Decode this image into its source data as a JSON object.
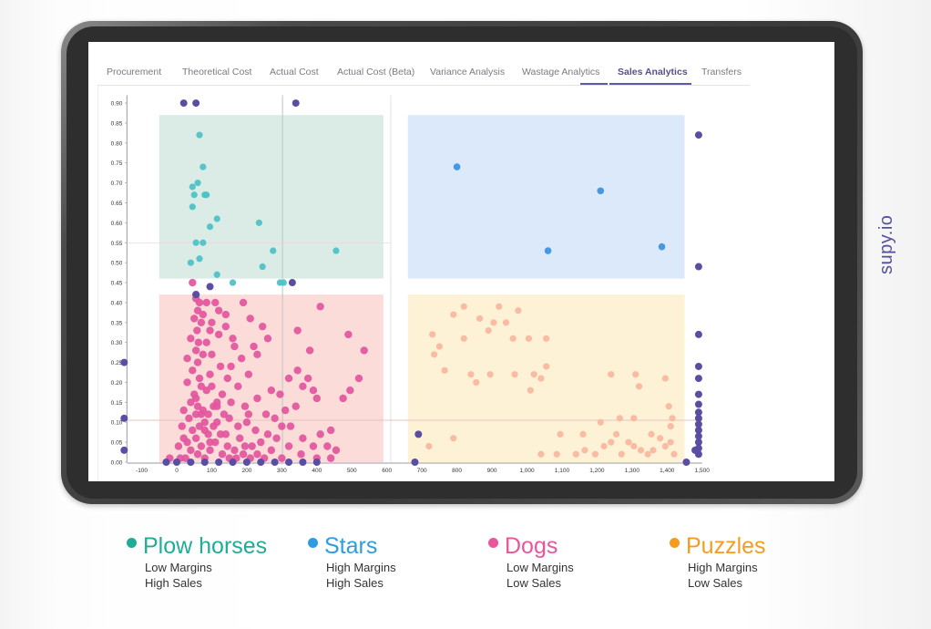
{
  "brand": "supy.io",
  "tabs": [
    {
      "label": "Procurement",
      "active": false
    },
    {
      "label": "Theoretical Cost",
      "active": false
    },
    {
      "label": "Actual Cost",
      "active": false
    },
    {
      "label": "Actual Cost (Beta)",
      "active": false
    },
    {
      "label": "Variance Analysis",
      "active": false
    },
    {
      "label": "Wastage Analytics",
      "active": false
    },
    {
      "label": "Sales Analytics",
      "active": true
    },
    {
      "label": "Transfers",
      "active": false
    }
  ],
  "legend": [
    {
      "title": "Plow horses",
      "line1": "Low Margins",
      "line2": "High Sales",
      "color": "#1fad96"
    },
    {
      "title": "Stars",
      "line1": "High Margins",
      "line2": "High Sales",
      "color": "#2f9be3"
    },
    {
      "title": "Dogs",
      "line1": "Low Margins",
      "line2": "Low Sales",
      "color": "#e8569c"
    },
    {
      "title": "Puzzles",
      "line1": "High Margins",
      "line2": "Low Sales",
      "color": "#f59b22"
    }
  ],
  "colors": {
    "plow_fill": "#dbece6",
    "stars_fill": "#dbe9fa",
    "dogs_fill": "#fbdcd8",
    "puzzles_fill": "#fdf2d6",
    "plow_point": "#4fc2c6",
    "stars_point": "#3d93df",
    "dogs_point": "#e2559e",
    "puzzles_point": "#f9b8a0",
    "edge_point": "#5a4ea3"
  },
  "chart_data": {
    "type": "scatter",
    "x_ticks": [
      "-100",
      "0",
      "100",
      "200",
      "300",
      "400",
      "500",
      "600",
      "700",
      "800",
      "900",
      "1,000",
      "1,100",
      "1,200",
      "1,300",
      "1,400",
      "1,500"
    ],
    "y_ticks": [
      "0.00",
      "0.05",
      "0.10",
      "0.15",
      "0.20",
      "0.25",
      "0.30",
      "0.35",
      "0.40",
      "0.45",
      "0.50",
      "0.55",
      "0.60",
      "0.65",
      "0.70",
      "0.75",
      "0.80",
      "0.85",
      "0.90"
    ],
    "xlim": [
      -150,
      1500
    ],
    "ylim": [
      0,
      0.92
    ],
    "quadrants": [
      {
        "name": "plow",
        "x": [
          -50,
          590
        ],
        "y": [
          0.46,
          0.87
        ]
      },
      {
        "name": "stars",
        "x": [
          660,
          1450
        ],
        "y": [
          0.46,
          0.87
        ]
      },
      {
        "name": "dogs",
        "x": [
          -50,
          590
        ],
        "y": [
          0,
          0.42
        ]
      },
      {
        "name": "puzzles",
        "x": [
          660,
          1450
        ],
        "y": [
          0,
          0.42
        ]
      }
    ],
    "reference_lines": {
      "x": 302,
      "y": 0.105,
      "x2": 611
    },
    "series": [
      {
        "points": [
          [
            65,
            0.82
          ],
          [
            75,
            0.74
          ],
          [
            60,
            0.7
          ],
          [
            45,
            0.69
          ],
          [
            50,
            0.67
          ],
          [
            85,
            0.67
          ],
          [
            80,
            0.67
          ],
          [
            45,
            0.64
          ],
          [
            95,
            0.59
          ],
          [
            115,
            0.61
          ],
          [
            235,
            0.6
          ],
          [
            55,
            0.55
          ],
          [
            75,
            0.55
          ],
          [
            275,
            0.53
          ],
          [
            455,
            0.53
          ],
          [
            65,
            0.51
          ],
          [
            40,
            0.5
          ],
          [
            245,
            0.49
          ],
          [
            115,
            0.47
          ],
          [
            160,
            0.45
          ],
          [
            295,
            0.45
          ],
          [
            305,
            0.45
          ]
        ]
      },
      {
        "points": [
          [
            800,
            0.74
          ],
          [
            1210,
            0.68
          ],
          [
            1060,
            0.53
          ],
          [
            1385,
            0.54
          ]
        ]
      },
      {
        "points": [
          [
            55,
            0.41
          ],
          [
            60,
            0.38
          ],
          [
            50,
            0.36
          ],
          [
            58,
            0.33
          ],
          [
            62,
            0.3
          ],
          [
            55,
            0.28
          ],
          [
            60,
            0.25
          ],
          [
            45,
            0.23
          ],
          [
            65,
            0.21
          ],
          [
            70,
            0.19
          ],
          [
            50,
            0.17
          ],
          [
            40,
            0.15
          ],
          [
            60,
            0.14
          ],
          [
            75,
            0.13
          ],
          [
            55,
            0.12
          ],
          [
            35,
            0.11
          ],
          [
            80,
            0.1
          ],
          [
            65,
            0.09
          ],
          [
            45,
            0.08
          ],
          [
            90,
            0.07
          ],
          [
            55,
            0.06
          ],
          [
            30,
            0.05
          ],
          [
            110,
            0.05
          ],
          [
            70,
            0.04
          ],
          [
            40,
            0.03
          ],
          [
            95,
            0.03
          ],
          [
            60,
            0.02
          ],
          [
            130,
            0.02
          ],
          [
            25,
            0.01
          ],
          [
            150,
            0.01
          ],
          [
            80,
            0.01
          ],
          [
            110,
            0.4
          ],
          [
            140,
            0.37
          ],
          [
            190,
            0.4
          ],
          [
            210,
            0.36
          ],
          [
            245,
            0.34
          ],
          [
            260,
            0.31
          ],
          [
            230,
            0.27
          ],
          [
            165,
            0.29
          ],
          [
            120,
            0.32
          ],
          [
            100,
            0.27
          ],
          [
            125,
            0.24
          ],
          [
            145,
            0.21
          ],
          [
            100,
            0.19
          ],
          [
            130,
            0.17
          ],
          [
            115,
            0.14
          ],
          [
            90,
            0.12
          ],
          [
            150,
            0.11
          ],
          [
            175,
            0.09
          ],
          [
            200,
            0.1
          ],
          [
            140,
            0.07
          ],
          [
            180,
            0.06
          ],
          [
            215,
            0.04
          ],
          [
            165,
            0.03
          ],
          [
            230,
            0.02
          ],
          [
            260,
            0.07
          ],
          [
            280,
            0.11
          ],
          [
            310,
            0.13
          ],
          [
            295,
            0.17
          ],
          [
            270,
            0.18
          ],
          [
            320,
            0.21
          ],
          [
            345,
            0.23
          ],
          [
            375,
            0.21
          ],
          [
            390,
            0.18
          ],
          [
            360,
            0.19
          ],
          [
            400,
            0.16
          ],
          [
            340,
            0.14
          ],
          [
            325,
            0.09
          ],
          [
            360,
            0.06
          ],
          [
            390,
            0.04
          ],
          [
            410,
            0.07
          ],
          [
            440,
            0.08
          ],
          [
            430,
            0.04
          ],
          [
            455,
            0.03
          ],
          [
            475,
            0.16
          ],
          [
            495,
            0.18
          ],
          [
            520,
            0.21
          ],
          [
            535,
            0.28
          ],
          [
            490,
            0.32
          ],
          [
            410,
            0.39
          ],
          [
            345,
            0.33
          ],
          [
            380,
            0.28
          ],
          [
            85,
            0.18
          ],
          [
            105,
            0.09
          ],
          [
            20,
            0.06
          ],
          [
            195,
            0.04
          ],
          [
            250,
            0.01
          ],
          [
            300,
            0.01
          ],
          [
            355,
            0.02
          ],
          [
            400,
            0.01
          ],
          [
            440,
            0.01
          ],
          [
            10,
            0.01
          ],
          [
            -20,
            0.01
          ],
          [
            30,
            0.2
          ],
          [
            75,
            0.27
          ],
          [
            95,
            0.33
          ],
          [
            115,
            0.15
          ],
          [
            135,
            0.12
          ],
          [
            155,
            0.15
          ],
          [
            175,
            0.19
          ],
          [
            205,
            0.12
          ],
          [
            225,
            0.08
          ],
          [
            240,
            0.05
          ],
          [
            270,
            0.03
          ],
          [
            285,
            0.06
          ],
          [
            255,
            0.12
          ],
          [
            230,
            0.16
          ],
          [
            205,
            0.22
          ],
          [
            185,
            0.26
          ],
          [
            160,
            0.31
          ],
          [
            140,
            0.34
          ],
          [
            120,
            0.38
          ],
          [
            85,
            0.4
          ],
          [
            70,
            0.35
          ],
          [
            40,
            0.31
          ],
          [
            30,
            0.26
          ],
          [
            20,
            0.13
          ],
          [
            15,
            0.09
          ],
          [
            5,
            0.04
          ],
          [
            100,
            0.35
          ],
          [
            155,
            0.24
          ],
          [
            195,
            0.14
          ],
          [
            220,
            0.29
          ],
          [
            300,
            0.09
          ],
          [
            320,
            0.04
          ],
          [
            45,
            0.45
          ],
          [
            55,
            0.42
          ],
          [
            65,
            0.4
          ],
          [
            75,
            0.37
          ],
          [
            85,
            0.3
          ],
          [
            95,
            0.22
          ],
          [
            105,
            0.14
          ],
          [
            125,
            0.07
          ],
          [
            145,
            0.04
          ],
          [
            170,
            0.01
          ],
          [
            190,
            0.02
          ],
          [
            210,
            0.01
          ],
          [
            55,
            0.16
          ],
          [
            70,
            0.12
          ],
          [
            80,
            0.08
          ],
          [
            95,
            0.05
          ],
          [
            115,
            0.1
          ]
        ]
      },
      {
        "points": [
          [
            820,
            0.39
          ],
          [
            790,
            0.37
          ],
          [
            920,
            0.39
          ],
          [
            975,
            0.38
          ],
          [
            865,
            0.36
          ],
          [
            905,
            0.35
          ],
          [
            940,
            0.35
          ],
          [
            730,
            0.32
          ],
          [
            820,
            0.31
          ],
          [
            890,
            0.33
          ],
          [
            960,
            0.31
          ],
          [
            1005,
            0.31
          ],
          [
            1055,
            0.31
          ],
          [
            750,
            0.29
          ],
          [
            735,
            0.27
          ],
          [
            765,
            0.23
          ],
          [
            840,
            0.22
          ],
          [
            855,
            0.2
          ],
          [
            895,
            0.22
          ],
          [
            965,
            0.22
          ],
          [
            1020,
            0.22
          ],
          [
            1040,
            0.21
          ],
          [
            1055,
            0.24
          ],
          [
            1010,
            0.18
          ],
          [
            1240,
            0.22
          ],
          [
            1310,
            0.22
          ],
          [
            1395,
            0.21
          ],
          [
            1320,
            0.19
          ],
          [
            1405,
            0.14
          ],
          [
            1415,
            0.11
          ],
          [
            1210,
            0.1
          ],
          [
            1265,
            0.11
          ],
          [
            1305,
            0.11
          ],
          [
            1095,
            0.07
          ],
          [
            1160,
            0.07
          ],
          [
            1255,
            0.07
          ],
          [
            1355,
            0.07
          ],
          [
            1410,
            0.09
          ],
          [
            720,
            0.04
          ],
          [
            790,
            0.06
          ],
          [
            1085,
            0.02
          ],
          [
            1140,
            0.02
          ],
          [
            1165,
            0.03
          ],
          [
            1220,
            0.04
          ],
          [
            1240,
            0.05
          ],
          [
            1290,
            0.05
          ],
          [
            1305,
            0.04
          ],
          [
            1325,
            0.03
          ],
          [
            1345,
            0.02
          ],
          [
            1395,
            0.04
          ],
          [
            1420,
            0.02
          ],
          [
            1270,
            0.02
          ],
          [
            1195,
            0.02
          ],
          [
            1380,
            0.06
          ],
          [
            1360,
            0.03
          ],
          [
            1410,
            0.05
          ],
          [
            1040,
            0.02
          ]
        ]
      }
    ],
    "edge_points": [
      [
        20,
        0.9
      ],
      [
        55,
        0.9
      ],
      [
        340,
        0.9
      ],
      [
        1490,
        0.82
      ],
      [
        1490,
        0.49
      ],
      [
        1490,
        0.32
      ],
      [
        1490,
        0.24
      ],
      [
        1490,
        0.21
      ],
      [
        1490,
        0.17
      ],
      [
        1490,
        0.145
      ],
      [
        1490,
        0.125
      ],
      [
        1490,
        0.11
      ],
      [
        1490,
        0.095
      ],
      [
        1490,
        0.08
      ],
      [
        1490,
        0.065
      ],
      [
        1490,
        0.05
      ],
      [
        1490,
        0.035
      ],
      [
        1490,
        0.02
      ],
      [
        1480,
        0.03
      ],
      [
        -150,
        0.25
      ],
      [
        -150,
        0.11
      ],
      [
        -150,
        0.03
      ],
      [
        690,
        0.07
      ],
      [
        55,
        0.42
      ],
      [
        95,
        0.44
      ],
      [
        330,
        0.45
      ],
      [
        -30,
        0.0
      ],
      [
        0,
        0.0
      ],
      [
        40,
        0.0
      ],
      [
        80,
        0.0
      ],
      [
        120,
        0.0
      ],
      [
        160,
        0.0
      ],
      [
        200,
        0.0
      ],
      [
        240,
        0.0
      ],
      [
        280,
        0.0
      ],
      [
        320,
        0.0
      ],
      [
        360,
        0.0
      ],
      [
        400,
        0.0
      ],
      [
        680,
        0.0
      ],
      [
        1455,
        0.0
      ]
    ]
  }
}
